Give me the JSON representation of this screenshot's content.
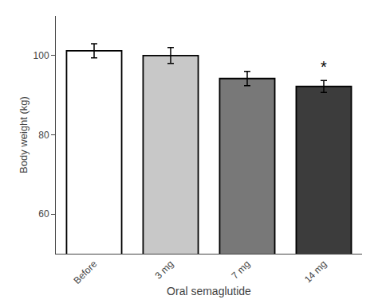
{
  "chart_data": {
    "type": "bar",
    "categories": [
      "Before",
      "3 mg",
      "7 mg",
      "14 mg"
    ],
    "values": [
      101.2,
      100.0,
      94.2,
      92.2
    ],
    "errors": [
      1.8,
      2.0,
      1.8,
      1.5
    ],
    "colors": [
      "#ffffff",
      "#c8c8c8",
      "#787878",
      "#3c3c3c"
    ],
    "xlabel": "Oral semaglutide",
    "ylabel": "Body weight (kg)",
    "ylim": [
      50,
      110
    ],
    "yticks": [
      60,
      80,
      100
    ],
    "grid": false,
    "annotations": [
      {
        "text": "*",
        "category": "14 mg"
      }
    ]
  }
}
